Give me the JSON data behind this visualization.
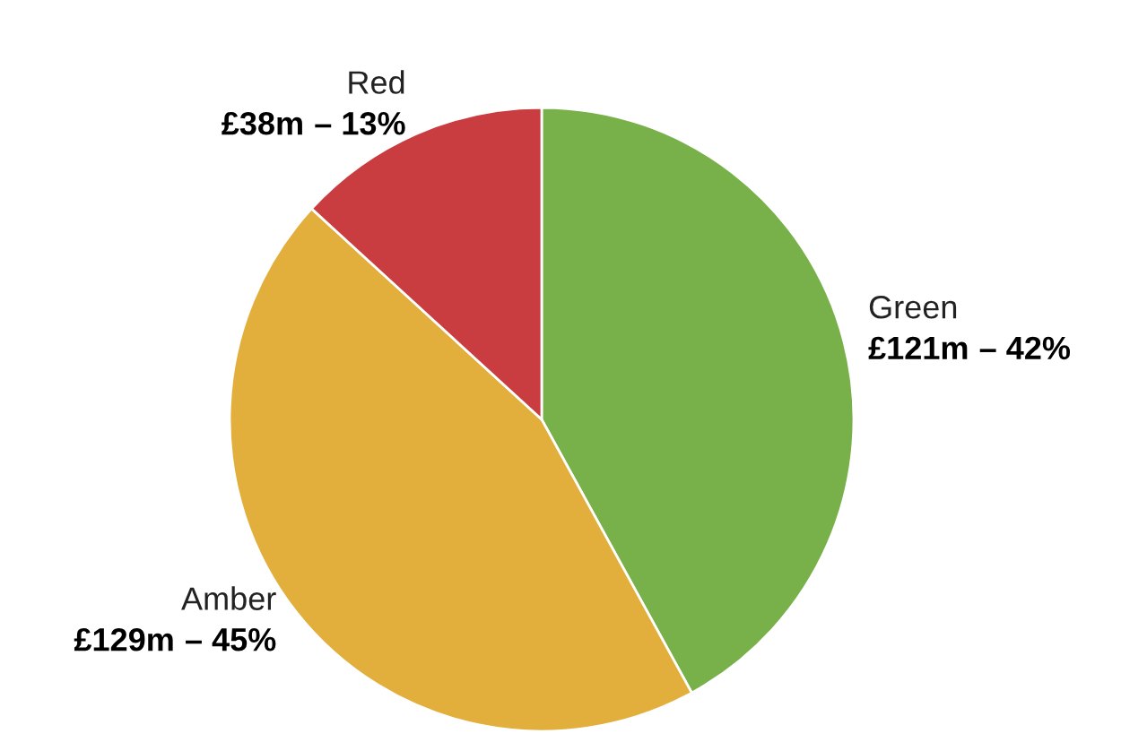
{
  "chart_data": {
    "type": "pie",
    "categories": [
      "Green",
      "Amber",
      "Red"
    ],
    "values": [
      121,
      129,
      38
    ],
    "colors": [
      "#78b04a",
      "#e3af3c",
      "#c93c3f"
    ],
    "value_labels": [
      "£121m",
      "£129m",
      "£38m"
    ],
    "annotations": [
      "– 42%",
      "– 45%",
      "– 13%"
    ]
  }
}
